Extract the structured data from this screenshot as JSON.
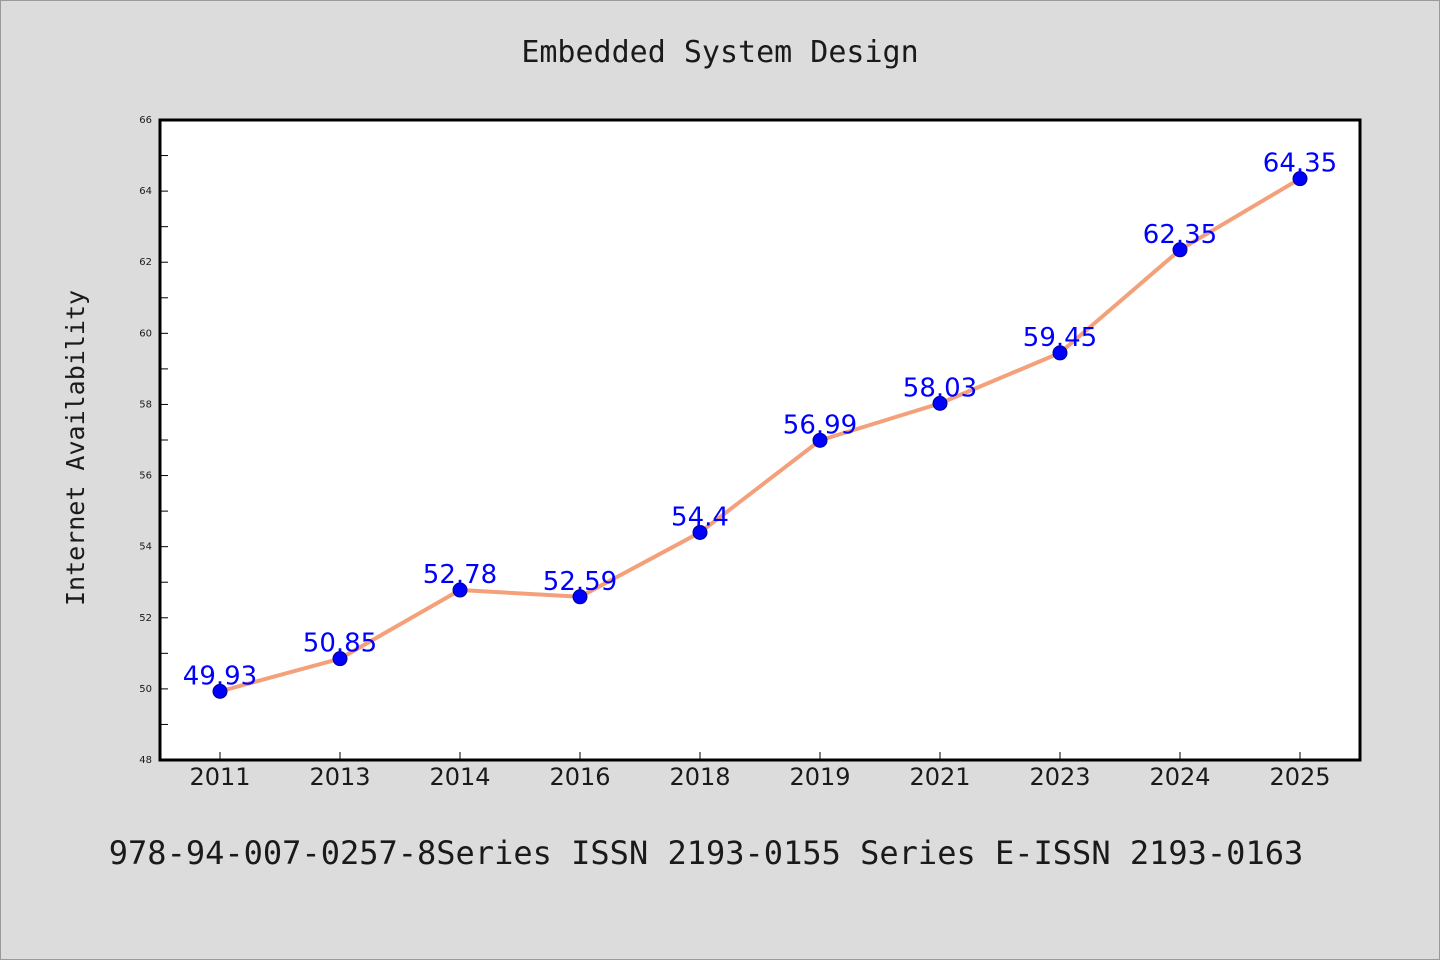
{
  "chart_data": {
    "type": "line",
    "title": "Embedded System Design",
    "xlabel": "",
    "ylabel": "Internet Availability",
    "categories": [
      "2011",
      "2013",
      "2014",
      "2016",
      "2018",
      "2019",
      "2021",
      "2023",
      "2024",
      "2025"
    ],
    "series": [
      {
        "values": [
          49.93,
          50.85,
          52.78,
          52.59,
          54.4,
          56.99,
          58.03,
          59.45,
          62.35,
          64.35
        ],
        "labels": [
          "49.93",
          "50.85",
          "52.78",
          "52.59",
          "54.4",
          "56.99",
          "58.03",
          "59.45",
          "62.35",
          "64.35"
        ],
        "line_color": "#f4a07a",
        "marker_color": "#0000ff"
      }
    ],
    "ylim": [
      48,
      66
    ],
    "yticks": [
      48,
      50,
      52,
      54,
      56,
      58,
      60,
      62,
      64,
      66
    ],
    "grid": false,
    "legend": "none"
  },
  "footer": {
    "text": "978-94-007-0257-8Series ISSN 2193-0155 Series E-ISSN 2193-0163"
  },
  "colors": {
    "background": "#dcdcdc",
    "plot_background": "#ffffff",
    "axis": "#000000"
  }
}
